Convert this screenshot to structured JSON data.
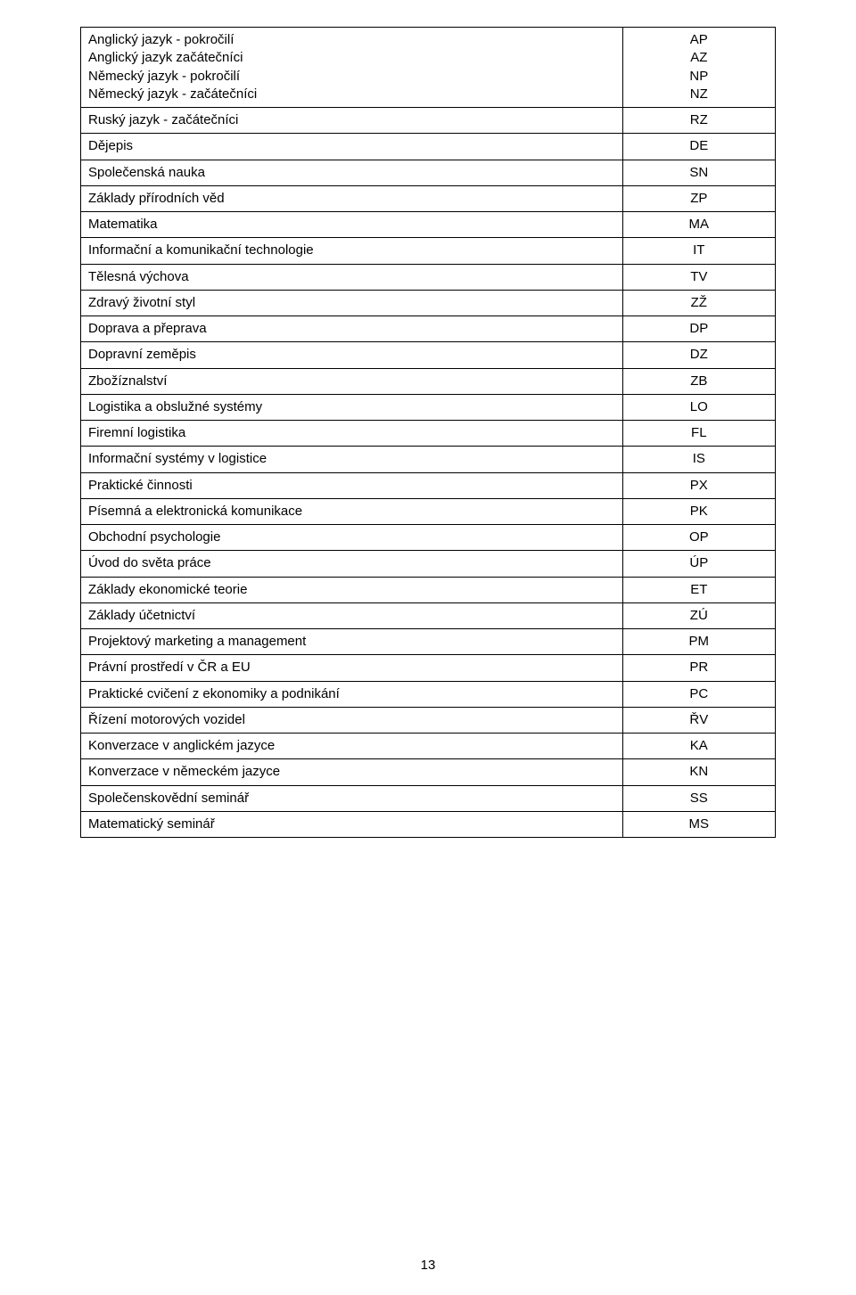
{
  "page_number": "13",
  "table": {
    "colors": {
      "border": "#000000",
      "background": "#ffffff",
      "text": "#000000"
    },
    "font_size": 15,
    "rows": [
      {
        "name_lines": [
          "Anglický jazyk - pokročilí",
          "Anglický jazyk začátečníci",
          "Německý jazyk - pokročilí",
          "Německý jazyk - začátečníci"
        ],
        "code_lines": [
          "AP",
          "AZ",
          "NP",
          "NZ"
        ]
      },
      {
        "name_lines": [
          "Ruský jazyk - začátečníci"
        ],
        "code_lines": [
          "RZ"
        ]
      },
      {
        "name_lines": [
          "Dějepis"
        ],
        "code_lines": [
          "DE"
        ]
      },
      {
        "name_lines": [
          "Společenská nauka"
        ],
        "code_lines": [
          "SN"
        ]
      },
      {
        "name_lines": [
          "Základy přírodních věd"
        ],
        "code_lines": [
          "ZP"
        ]
      },
      {
        "name_lines": [
          "Matematika"
        ],
        "code_lines": [
          "MA"
        ]
      },
      {
        "name_lines": [
          "Informační a komunikační technologie"
        ],
        "code_lines": [
          "IT"
        ]
      },
      {
        "name_lines": [
          "Tělesná výchova"
        ],
        "code_lines": [
          "TV"
        ]
      },
      {
        "name_lines": [
          "Zdravý životní styl"
        ],
        "code_lines": [
          "ZŽ"
        ]
      },
      {
        "name_lines": [
          "Doprava a přeprava"
        ],
        "code_lines": [
          "DP"
        ]
      },
      {
        "name_lines": [
          "Dopravní zeměpis"
        ],
        "code_lines": [
          "DZ"
        ]
      },
      {
        "name_lines": [
          "Zbožíznalství"
        ],
        "code_lines": [
          "ZB"
        ]
      },
      {
        "name_lines": [
          "Logistika a obslužné systémy"
        ],
        "code_lines": [
          "LO"
        ]
      },
      {
        "name_lines": [
          "Firemní logistika"
        ],
        "code_lines": [
          "FL"
        ]
      },
      {
        "name_lines": [
          "Informační systémy v logistice"
        ],
        "code_lines": [
          "IS"
        ]
      },
      {
        "name_lines": [
          "Praktické činnosti"
        ],
        "code_lines": [
          "PX"
        ]
      },
      {
        "name_lines": [
          "Písemná a elektronická komunikace"
        ],
        "code_lines": [
          "PK"
        ]
      },
      {
        "name_lines": [
          "Obchodní psychologie"
        ],
        "code_lines": [
          "OP"
        ]
      },
      {
        "name_lines": [
          "Úvod do světa práce"
        ],
        "code_lines": [
          "ÚP"
        ]
      },
      {
        "name_lines": [
          "Základy ekonomické teorie"
        ],
        "code_lines": [
          "ET"
        ]
      },
      {
        "name_lines": [
          "Základy účetnictví"
        ],
        "code_lines": [
          "ZÚ"
        ]
      },
      {
        "name_lines": [
          "Projektový marketing a management"
        ],
        "code_lines": [
          "PM"
        ]
      },
      {
        "name_lines": [
          "Právní prostředí v ČR a EU"
        ],
        "code_lines": [
          "PR"
        ]
      },
      {
        "name_lines": [
          "Praktické cvičení z ekonomiky a podnikání"
        ],
        "code_lines": [
          "PC"
        ]
      },
      {
        "name_lines": [
          "Řízení motorových vozidel"
        ],
        "code_lines": [
          "ŘV"
        ]
      },
      {
        "name_lines": [
          "Konverzace v anglickém jazyce"
        ],
        "code_lines": [
          "KA"
        ]
      },
      {
        "name_lines": [
          "Konverzace v německém jazyce"
        ],
        "code_lines": [
          "KN"
        ]
      },
      {
        "name_lines": [
          "Společenskovědní seminář"
        ],
        "code_lines": [
          "SS"
        ]
      },
      {
        "name_lines": [
          "Matematický seminář"
        ],
        "code_lines": [
          "MS"
        ]
      }
    ]
  }
}
